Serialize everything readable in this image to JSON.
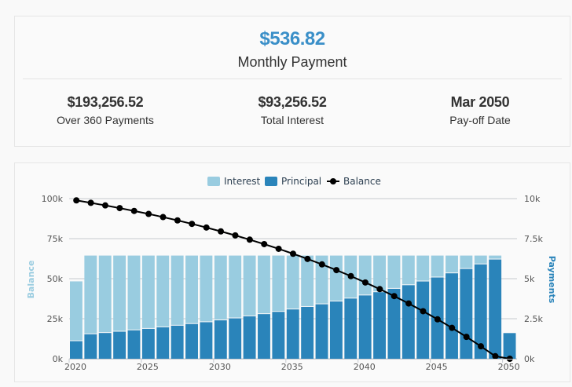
{
  "summary": {
    "monthly_payment": "$536.82",
    "monthly_payment_label": "Monthly Payment",
    "stats": [
      {
        "value": "$193,256.52",
        "label": "Over 360 Payments"
      },
      {
        "value": "$93,256.52",
        "label": "Total Interest"
      },
      {
        "value": "Mar 2050",
        "label": "Pay-off Date"
      }
    ]
  },
  "chart_data": {
    "type": "bar",
    "stacked": true,
    "grid": true,
    "legend": "top-center",
    "legend_entries": [
      "Interest",
      "Principal",
      "Balance"
    ],
    "left_axis": {
      "label": "Balance",
      "ticks": [
        "0k",
        "25k",
        "50k",
        "75k",
        "100k"
      ],
      "range": [
        0,
        100000
      ]
    },
    "right_axis": {
      "label": "Payments",
      "ticks": [
        "0k",
        "2.5k",
        "5k",
        "7.5k",
        "10k"
      ],
      "range": [
        0,
        10000
      ]
    },
    "x_ticks": [
      "2020",
      "2025",
      "2030",
      "2035",
      "2040",
      "2045",
      "2050"
    ],
    "categories": [
      2020,
      2021,
      2022,
      2023,
      2024,
      2025,
      2026,
      2027,
      2028,
      2029,
      2030,
      2031,
      2032,
      2033,
      2034,
      2035,
      2036,
      2037,
      2038,
      2039,
      2040,
      2041,
      2042,
      2043,
      2044,
      2045,
      2046,
      2047,
      2048,
      2049,
      2050
    ],
    "colors": {
      "Interest": "#99cce0",
      "Principal": "#2a84ba",
      "Balance": "#000000"
    },
    "series": [
      {
        "name": "Interest",
        "axis": "right",
        "values": [
          3731,
          4911,
          4833,
          4750,
          4664,
          4573,
          4477,
          4376,
          4271,
          4159,
          4043,
          3920,
          3791,
          3655,
          3512,
          3362,
          3204,
          3039,
          2864,
          2681,
          2488,
          2286,
          2073,
          1849,
          1614,
          1367,
          1107,
          833,
          546,
          244,
          7
        ]
      },
      {
        "name": "Principal",
        "axis": "right",
        "values": [
          1100,
          1531,
          1609,
          1692,
          1778,
          1869,
          1965,
          2066,
          2171,
          2283,
          2399,
          2522,
          2651,
          2787,
          2930,
          3080,
          3238,
          3403,
          3578,
          3761,
          3954,
          4156,
          4369,
          4593,
          4828,
          5075,
          5335,
          5609,
          5896,
          6198,
          1603
        ]
      },
      {
        "name": "Balance",
        "type": "line",
        "axis": "left",
        "values": [
          98900,
          97369,
          95760,
          94068,
          92290,
          90421,
          88456,
          86390,
          84219,
          81936,
          79537,
          77015,
          74364,
          71577,
          68647,
          65567,
          62329,
          58926,
          55348,
          51587,
          47633,
          43477,
          39108,
          34515,
          29687,
          24612,
          19277,
          13668,
          7772,
          1574,
          0
        ]
      }
    ]
  }
}
